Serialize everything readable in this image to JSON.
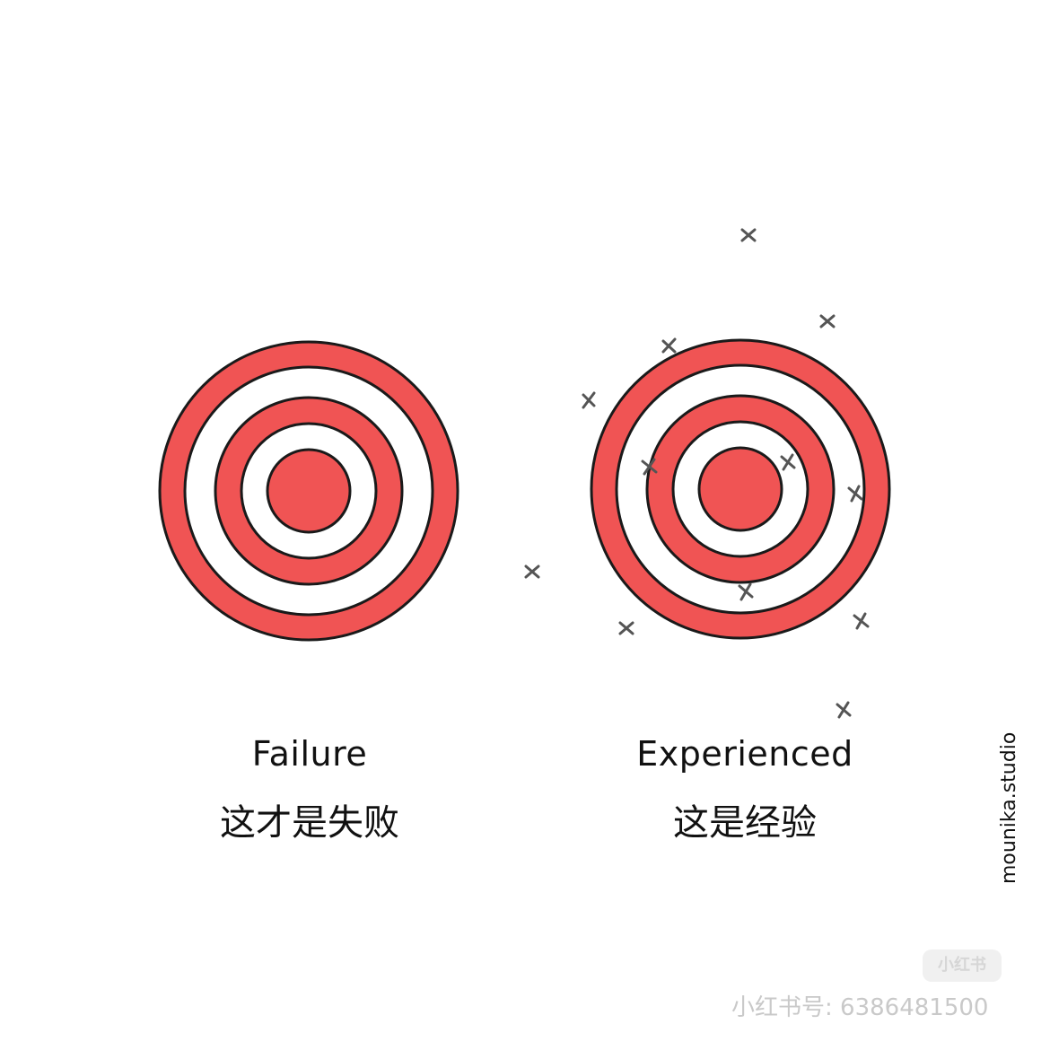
{
  "colors": {
    "ring_red": "#f05454",
    "ring_white": "#ffffff",
    "outline": "#1a1a1a",
    "hit_mark": "#555555"
  },
  "targets": [
    {
      "id": "failure",
      "caption_en": "Failure",
      "caption_zh": "这才是失败"
    },
    {
      "id": "experienced",
      "caption_en": "Experienced",
      "caption_zh": "这是经验"
    }
  ],
  "watermark": {
    "logo_text": "小红书",
    "account_text": "小红书号: 6386481500"
  },
  "signature": "mounika.studio"
}
